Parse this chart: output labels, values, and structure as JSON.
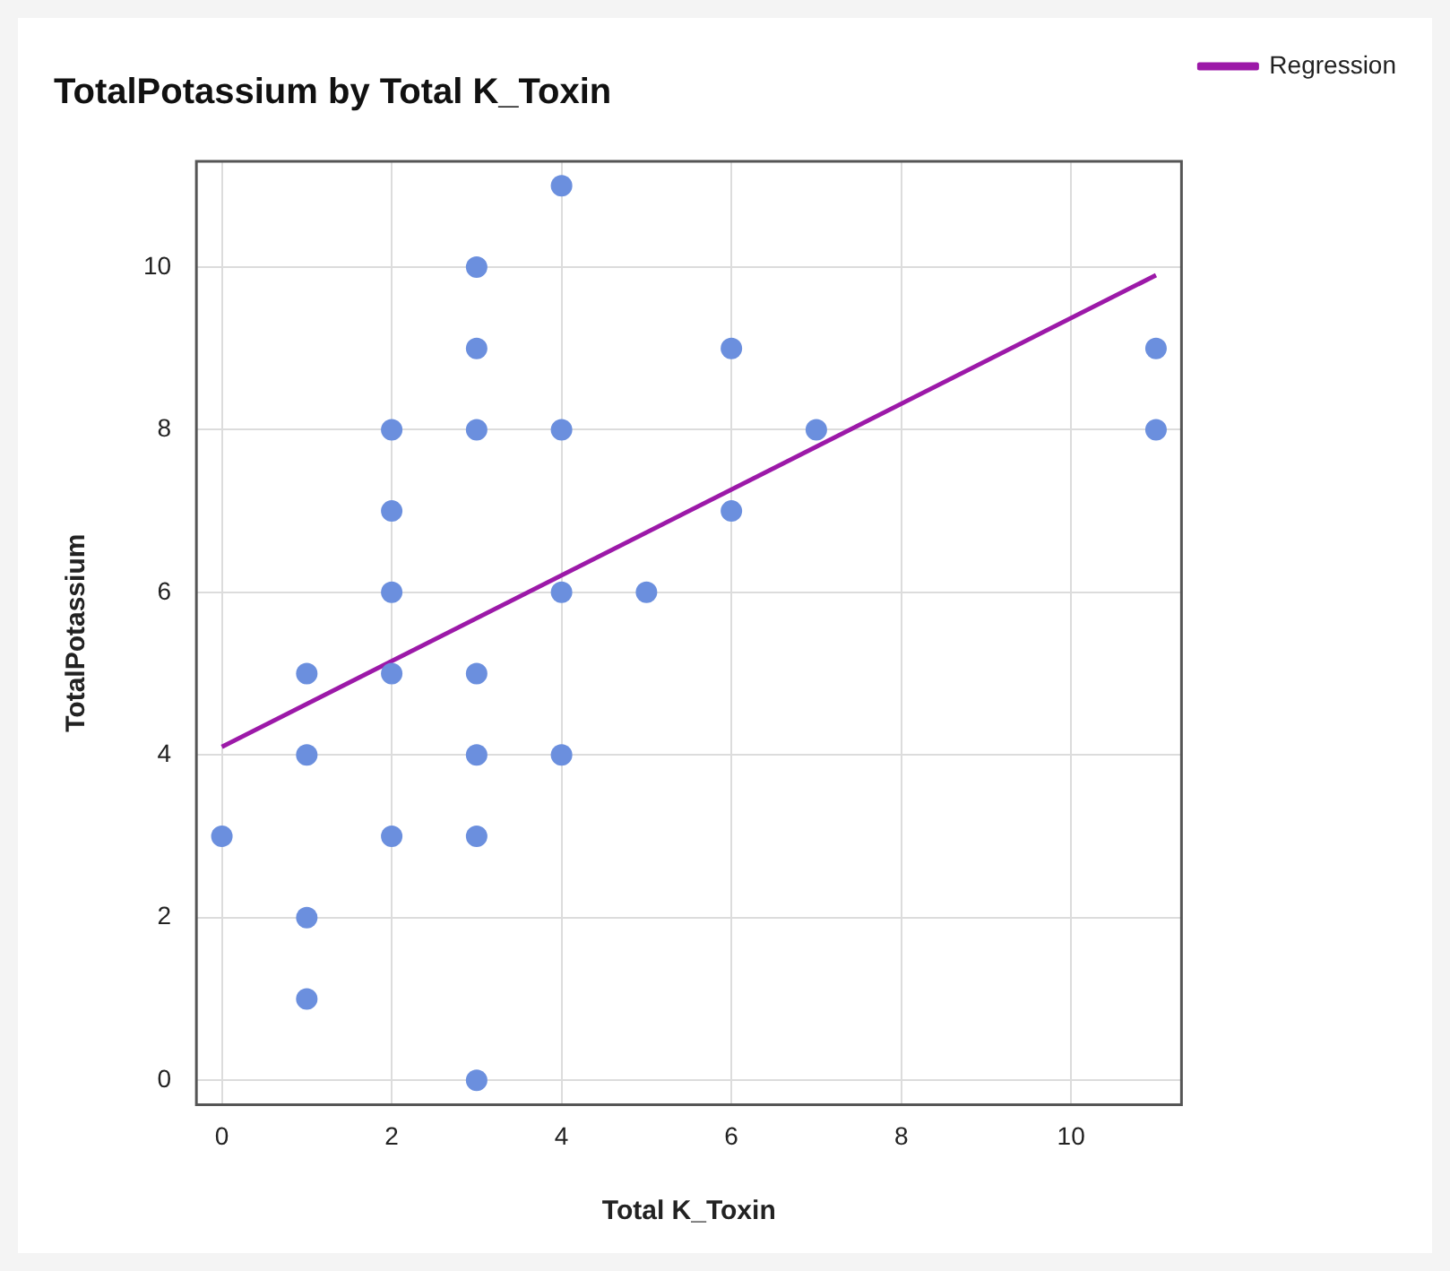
{
  "chart_data": {
    "type": "scatter",
    "title": "TotalPotassium by Total K_Toxin",
    "xlabel": "Total K_Toxin",
    "ylabel": "TotalPotassium",
    "series": [
      {
        "color": "#6b8fde",
        "marker": "circle",
        "x": [
          0,
          1,
          1,
          1,
          1,
          2,
          2,
          2,
          2,
          2,
          3,
          3,
          3,
          3,
          3,
          3,
          3,
          4,
          4,
          4,
          4,
          5,
          6,
          6,
          7,
          11,
          11
        ],
        "values": [
          3,
          5,
          4,
          2,
          1,
          8,
          7,
          6,
          5,
          3,
          10,
          9,
          8,
          5,
          4,
          3,
          0,
          11,
          8,
          6,
          4,
          6,
          9,
          7,
          8,
          9,
          8
        ]
      },
      {
        "type": "line",
        "name": "Regression",
        "color": "#9c19a8",
        "marker": "none",
        "x": [
          0,
          11
        ],
        "values": [
          4.1,
          9.9
        ]
      }
    ],
    "xlim": [
      -0.3,
      11.3
    ],
    "ylim": [
      -0.3,
      11.3
    ],
    "xticks": [
      0,
      2,
      4,
      6,
      8,
      10
    ],
    "yticks": [
      0,
      2,
      4,
      6,
      8,
      10
    ],
    "grid": true,
    "legend": "top right"
  }
}
